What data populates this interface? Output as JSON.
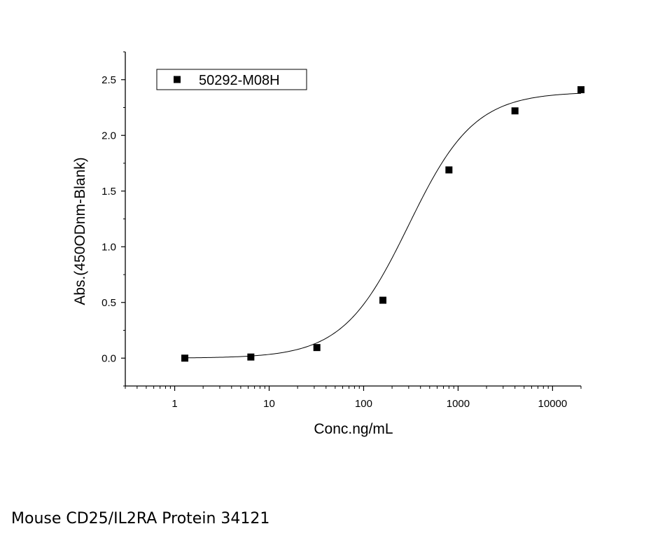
{
  "chart_data": {
    "type": "scatter",
    "title": "",
    "xlabel": "Conc.ng/mL",
    "ylabel": "Abs.(450ODnm-Blank)",
    "xscale": "log",
    "xlim": [
      0.3,
      20000
    ],
    "ylim": [
      -0.25,
      2.75
    ],
    "x_ticks": [
      1,
      10,
      100,
      1000,
      10000
    ],
    "x_tick_labels": [
      "1",
      "10",
      "100",
      "1000",
      "10000"
    ],
    "y_ticks": [
      0.0,
      0.5,
      1.0,
      1.5,
      2.0,
      2.5
    ],
    "y_tick_labels": [
      "0.0",
      "0.5",
      "1.0",
      "1.5",
      "2.0",
      "2.5"
    ],
    "grid": false,
    "legend_position": "top-left",
    "series": [
      {
        "name": "50292-M08H",
        "marker": "square",
        "color": "#000000",
        "x": [
          1.28,
          6.4,
          32,
          160,
          800,
          4000,
          20000
        ],
        "y": [
          0.0,
          0.01,
          0.095,
          0.52,
          1.69,
          2.22,
          2.41
        ]
      }
    ],
    "fit_curve": {
      "type": "4PL",
      "bottom": 0.0,
      "top": 2.39,
      "ec50": 300,
      "hill": 1.25,
      "x_range": [
        1.28,
        20000
      ]
    }
  },
  "caption": "Mouse CD25/IL2RA Protein 34121"
}
